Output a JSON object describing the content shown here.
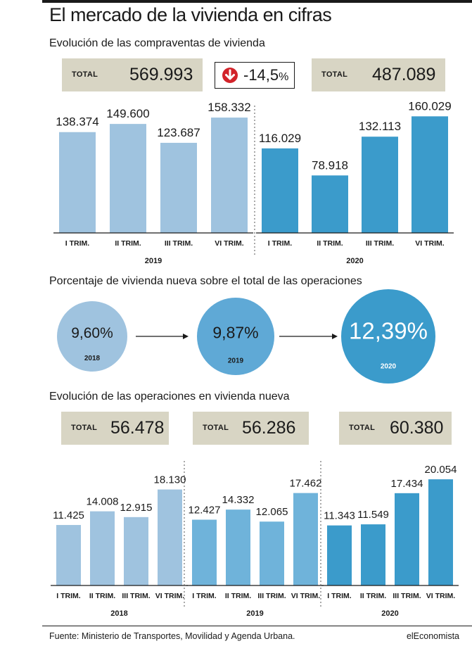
{
  "title": "El mercado de la vivienda en cifras",
  "section1": {
    "title": "Evolución de las compraventas de vivienda",
    "total_label": "TOTAL",
    "total_2019": "569.993",
    "total_2020": "487.089",
    "change": "-14,5",
    "change_unit": "%"
  },
  "section2": {
    "title": "Porcentaje de vivienda nueva sobre el total de las operaciones"
  },
  "section3": {
    "title": "Evolución de las operaciones en vivienda nueva",
    "total_label": "TOTAL",
    "total_2018": "56.478",
    "total_2019": "56.286",
    "total_2020": "60.380"
  },
  "footer": {
    "source": "Fuente: Ministerio de Transportes, Movilidad y Agenda Urbana.",
    "brand": "elEconomista"
  },
  "colors": {
    "light_blue": "#9fc3df",
    "mid_blue": "#6fb3da",
    "dark_blue": "#3b9bcb",
    "circle_2018": "#9fc3df",
    "circle_2019": "#5fa9d6",
    "circle_2020": "#3b9bcb",
    "box": "#d8d5c4",
    "down_arrow": "#d2232a"
  },
  "chart_data": [
    {
      "type": "bar",
      "title": "Evolución de las compraventas de vivienda",
      "categories": [
        "I TRIM.",
        "II TRIM.",
        "III TRIM.",
        "VI TRIM."
      ],
      "series": [
        {
          "name": "2019",
          "values": [
            138374,
            149600,
            123687,
            158332
          ],
          "labels": [
            "138.374",
            "149.600",
            "123.687",
            "158.332"
          ]
        },
        {
          "name": "2020",
          "values": [
            116029,
            78918,
            132113,
            160029
          ],
          "labels": [
            "116.029",
            "78.918",
            "132.113",
            "160.029"
          ]
        }
      ],
      "ylim": [
        0,
        170000
      ]
    },
    {
      "type": "bubble",
      "title": "Porcentaje de vivienda nueva sobre el total de las operaciones",
      "categories": [
        "2018",
        "2019",
        "2020"
      ],
      "values": [
        9.6,
        9.87,
        12.39
      ],
      "labels": [
        "9,60%",
        "9,87%",
        "12,39%"
      ]
    },
    {
      "type": "bar",
      "title": "Evolución de las operaciones en vivienda nueva",
      "categories": [
        "I TRIM.",
        "II TRIM.",
        "III TRIM.",
        "VI TRIM."
      ],
      "series": [
        {
          "name": "2018",
          "values": [
            11425,
            14008,
            12915,
            18130
          ],
          "labels": [
            "11.425",
            "14.008",
            "12.915",
            "18.130"
          ]
        },
        {
          "name": "2019",
          "values": [
            12427,
            14332,
            12065,
            17462
          ],
          "labels": [
            "12.427",
            "14.332",
            "12.065",
            "17.462"
          ]
        },
        {
          "name": "2020",
          "values": [
            11343,
            11549,
            17434,
            20054
          ],
          "labels": [
            "11.343",
            "11.549",
            "17.434",
            "20.054"
          ]
        }
      ],
      "ylim": [
        0,
        21000
      ]
    }
  ]
}
